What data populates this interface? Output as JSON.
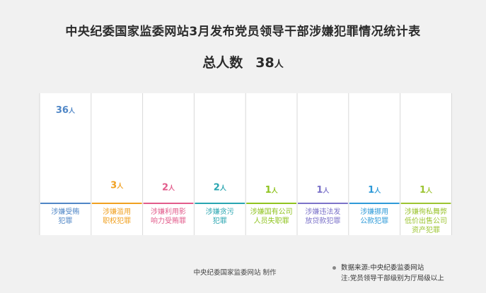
{
  "title": "中央纪委国家监委网站3月发布党员领导干部涉嫌犯罪情况统计表",
  "summary": {
    "label": "总人数",
    "value": "38",
    "unit": "人"
  },
  "chart_data": {
    "type": "bar",
    "categories": [
      [
        "涉嫌受贿",
        "犯罪"
      ],
      [
        "涉嫌滥用",
        "职权犯罪"
      ],
      [
        "涉嫌利用影",
        "响力受贿罪"
      ],
      [
        "涉嫌贪污",
        "犯罪"
      ],
      [
        "涉嫌国有公司",
        "人员失职罪"
      ],
      [
        "涉嫌违法发",
        "放贷款犯罪"
      ],
      [
        "涉嫌挪用",
        "公款犯罪"
      ],
      [
        "涉嫌徇私舞弊",
        "低价出售公司",
        "资产犯罪"
      ]
    ],
    "values": [
      36,
      3,
      2,
      2,
      1,
      1,
      1,
      1
    ],
    "value_unit": "人",
    "colors": [
      "#4f86c6",
      "#f0a020",
      "#e25b8b",
      "#28a5b0",
      "#8fc31f",
      "#7b72c9",
      "#2e9ad8",
      "#9cc431"
    ],
    "grid": false,
    "legend": "none"
  },
  "footer": {
    "maker": "中央纪委国家监委网站 制作",
    "source": "数据来源:中央纪委监委网站",
    "note": "注:党员领导干部级别为厅局级以上"
  }
}
